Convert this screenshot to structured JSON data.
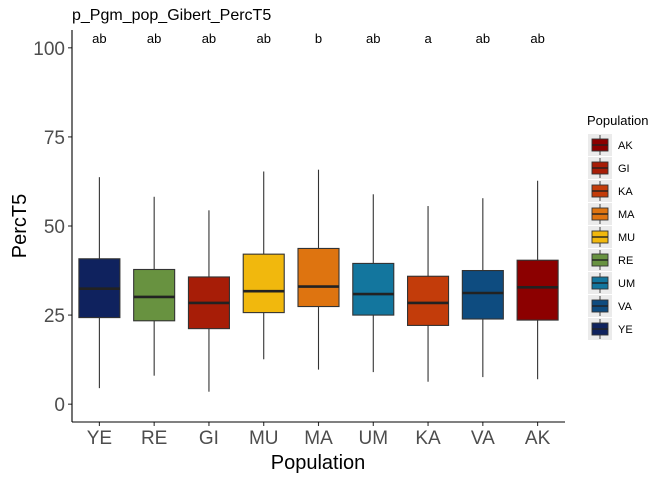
{
  "chart_data": {
    "type": "box",
    "title": "p_Pgm_pop_Gibert_PercT5",
    "xlabel": "Population",
    "ylabel": "PercT5",
    "ylim": [
      -5,
      105
    ],
    "yticks": [
      0,
      25,
      50,
      75,
      100
    ],
    "grid": false,
    "legend": {
      "title": "Population",
      "position": "right",
      "entries": [
        "AK",
        "GI",
        "KA",
        "MA",
        "MU",
        "RE",
        "UM",
        "VA",
        "YE"
      ]
    },
    "categories": [
      "YE",
      "RE",
      "GI",
      "MU",
      "MA",
      "UM",
      "KA",
      "VA",
      "AK"
    ],
    "boxes": [
      {
        "population": "YE",
        "min": 4.5,
        "q1": 24.3,
        "median": 32.4,
        "q3": 40.8,
        "max": 63.7,
        "letter": "ab"
      },
      {
        "population": "RE",
        "min": 8.0,
        "q1": 23.4,
        "median": 30.1,
        "q3": 37.8,
        "max": 58.2,
        "letter": "ab"
      },
      {
        "population": "GI",
        "min": 3.5,
        "q1": 21.2,
        "median": 28.4,
        "q3": 35.7,
        "max": 54.4,
        "letter": "ab"
      },
      {
        "population": "MU",
        "min": 12.6,
        "q1": 25.7,
        "median": 31.7,
        "q3": 42.1,
        "max": 65.3,
        "letter": "ab"
      },
      {
        "population": "MA",
        "min": 9.7,
        "q1": 27.4,
        "median": 33.0,
        "q3": 43.7,
        "max": 65.8,
        "letter": "b"
      },
      {
        "population": "UM",
        "min": 9.0,
        "q1": 25.0,
        "median": 30.9,
        "q3": 39.5,
        "max": 58.9,
        "letter": "ab"
      },
      {
        "population": "KA",
        "min": 6.3,
        "q1": 22.1,
        "median": 28.4,
        "q3": 35.9,
        "max": 55.6,
        "letter": "a"
      },
      {
        "population": "VA",
        "min": 7.6,
        "q1": 23.9,
        "median": 31.2,
        "q3": 37.5,
        "max": 57.8,
        "letter": "ab"
      },
      {
        "population": "AK",
        "min": 7.0,
        "q1": 23.6,
        "median": 32.8,
        "q3": 40.4,
        "max": 62.7,
        "letter": "ab"
      }
    ],
    "colors": {
      "AK": "#8c0000",
      "GI": "#a71d07",
      "KA": "#c33c0a",
      "MA": "#de7410",
      "MU": "#f1b80d",
      "RE": "#689240",
      "UM": "#13769e",
      "VA": "#0e4c80",
      "YE": "#0f225e"
    }
  }
}
